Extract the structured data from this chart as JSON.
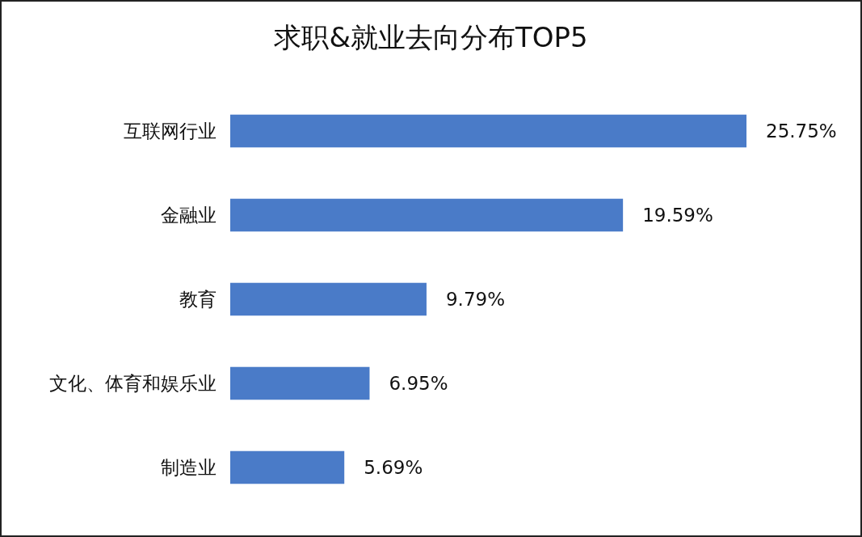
{
  "chart_data": {
    "type": "bar",
    "title": "求职&就业去向分布TOP5",
    "orientation": "horizontal",
    "categories": [
      "互联网行业",
      "金融业",
      "教育",
      "文化、体育和娱乐业",
      "制造业"
    ],
    "values": [
      25.75,
      19.59,
      9.79,
      6.95,
      5.69
    ],
    "value_labels": [
      "25.75%",
      "19.59%",
      "9.79%",
      "6.95%",
      "5.69%"
    ],
    "color": "#4a7bc8"
  }
}
